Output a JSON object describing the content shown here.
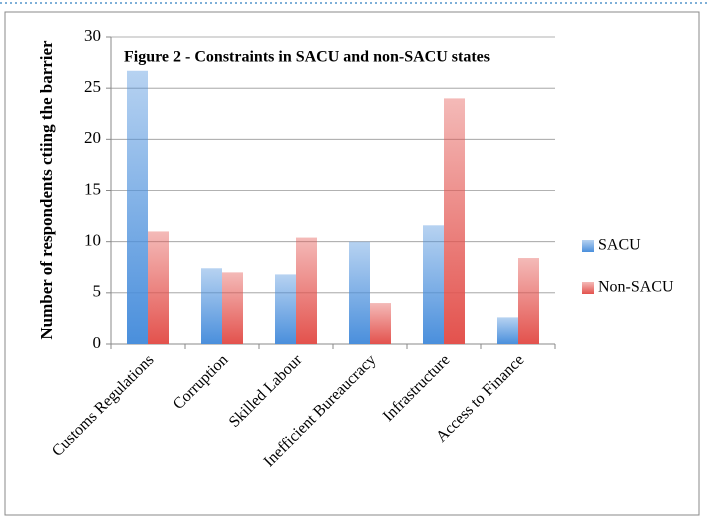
{
  "chart_data": {
    "type": "bar",
    "title": "Figure 2 - Constraints in SACU and non-SACU states",
    "y_label": "Number of  respondents ctiing the barrier",
    "categories": [
      "Customs Regulations",
      "Corruption",
      "Skilled Labour",
      "Inefficient Bureaucracy",
      "Infrastructure",
      "Access to Finance"
    ],
    "series": [
      {
        "name": "SACU",
        "color": "#4a8fdc",
        "values": [
          26.7,
          7.4,
          6.8,
          10,
          11.6,
          2.6
        ]
      },
      {
        "name": "Non-SACU",
        "color": "#e3524d",
        "values": [
          11,
          7,
          10.4,
          4,
          24,
          8.4
        ]
      }
    ],
    "ylim": [
      0,
      30
    ],
    "yticks": [
      0,
      5,
      10,
      15,
      20,
      25,
      30
    ],
    "grid": true,
    "legend": "right"
  }
}
